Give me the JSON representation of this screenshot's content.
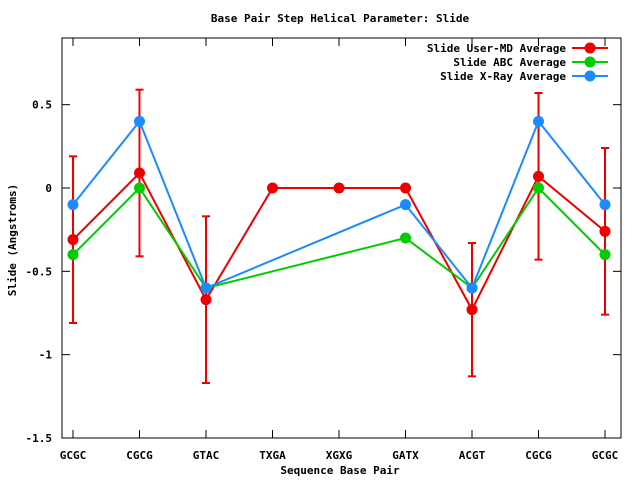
{
  "chart_data": {
    "type": "line",
    "title": "Base Pair Step Helical Parameter: Slide",
    "xlabel": "Sequence Base Pair",
    "ylabel": "Slide (Angstroms)",
    "categories": [
      "GCGC",
      "CGCG",
      "GTAC",
      "TXGA",
      "XGXG",
      "GATX",
      "ACGT",
      "CGCG",
      "GCGC"
    ],
    "ylim": [
      -1.5,
      0.9
    ],
    "yticks": [
      0.5,
      0,
      -0.5,
      -1,
      -1.5
    ],
    "ytick_labels": [
      "0.5",
      "0",
      "-0.5",
      "-1",
      "-1.5"
    ],
    "legend_position": "top-right",
    "series": [
      {
        "name": "Slide User-MD Average",
        "color": "#ee0000",
        "values": [
          -0.31,
          0.09,
          -0.67,
          0.0,
          0.0,
          0.0,
          -0.73,
          0.07,
          -0.26
        ],
        "error_low": [
          -0.81,
          -0.41,
          -1.17,
          null,
          null,
          null,
          -1.13,
          -0.43,
          -0.76
        ],
        "error_high": [
          0.19,
          0.59,
          -0.17,
          null,
          null,
          null,
          -0.33,
          0.57,
          0.24
        ]
      },
      {
        "name": "Slide ABC Average",
        "color": "#00cc00",
        "values": [
          -0.4,
          0.0,
          -0.6,
          null,
          null,
          -0.3,
          -0.6,
          0.0,
          -0.4
        ]
      },
      {
        "name": "Slide X-Ray Average",
        "color": "#1a8cff",
        "values": [
          -0.1,
          0.4,
          -0.6,
          null,
          null,
          -0.1,
          -0.6,
          0.4,
          -0.1
        ]
      }
    ]
  }
}
